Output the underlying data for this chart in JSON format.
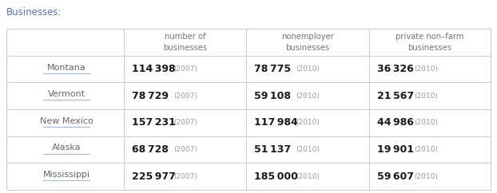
{
  "title": "Businesses:",
  "title_color": "#5b6bbf",
  "title_bg": "#f5f5f8",
  "header_line_color": "#f0c040",
  "background_color": "#ffffff",
  "columns": [
    "",
    "number of\nbusinesses",
    "nonemployer\nbusinesses",
    "private non–farm\nbusinesses"
  ],
  "rows": [
    {
      "state": "Montana",
      "num_biz": "114 398",
      "num_biz_year": "(2007)",
      "nonemploy": "78 775",
      "nonemploy_year": "(2010)",
      "private": "36 326",
      "private_year": "(2010)"
    },
    {
      "state": "Vermont",
      "num_biz": "78 729",
      "num_biz_year": "(2007)",
      "nonemploy": "59 108",
      "nonemploy_year": "(2010)",
      "private": "21 567",
      "private_year": "(2010)"
    },
    {
      "state": "New Mexico",
      "num_biz": "157 231",
      "num_biz_year": "(2007)",
      "nonemploy": "117 984",
      "nonemploy_year": "(2010)",
      "private": "44 986",
      "private_year": "(2010)"
    },
    {
      "state": "Alaska",
      "num_biz": "68 728",
      "num_biz_year": "(2007)",
      "nonemploy": "51 137",
      "nonemploy_year": "(2010)",
      "private": "19 901",
      "private_year": "(2010)"
    },
    {
      "state": "Mississippi",
      "num_biz": "225 977",
      "num_biz_year": "(2007)",
      "nonemploy": "185 000",
      "nonemploy_year": "(2010)",
      "private": "59 607",
      "private_year": "(2010)"
    }
  ],
  "state_color": "#666666",
  "value_color": "#1a1a1a",
  "year_color": "#999999",
  "header_color": "#777777",
  "table_border_color": "#cccccc",
  "state_underline_color": "#aabbdd"
}
